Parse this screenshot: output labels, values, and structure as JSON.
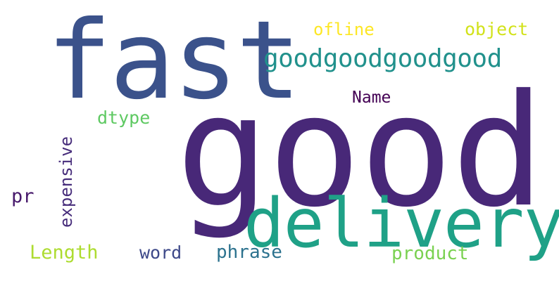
{
  "words": {
    "fast": {
      "text": "fast",
      "color": "#3b528b"
    },
    "good": {
      "text": "good",
      "color": "#482878"
    },
    "delivery": {
      "text": "delivery",
      "color": "#1fa187"
    },
    "goodgood": {
      "text": "goodgoodgoodgood",
      "color": "#21918c"
    },
    "ofline": {
      "text": "ofline",
      "color": "#fde725"
    },
    "object": {
      "text": "object",
      "color": "#d2e21b"
    },
    "name": {
      "text": "Name",
      "color": "#440154"
    },
    "dtype": {
      "text": "dtype",
      "color": "#5ec962"
    },
    "expensive": {
      "text": "expensive",
      "color": "#472d7b"
    },
    "pr": {
      "text": "pr",
      "color": "#481a6c"
    },
    "length": {
      "text": "Length",
      "color": "#addc30"
    },
    "word": {
      "text": "word",
      "color": "#3e4989"
    },
    "phrase": {
      "text": "phrase",
      "color": "#2c728e"
    },
    "product": {
      "text": "product",
      "color": "#7ad151"
    }
  }
}
